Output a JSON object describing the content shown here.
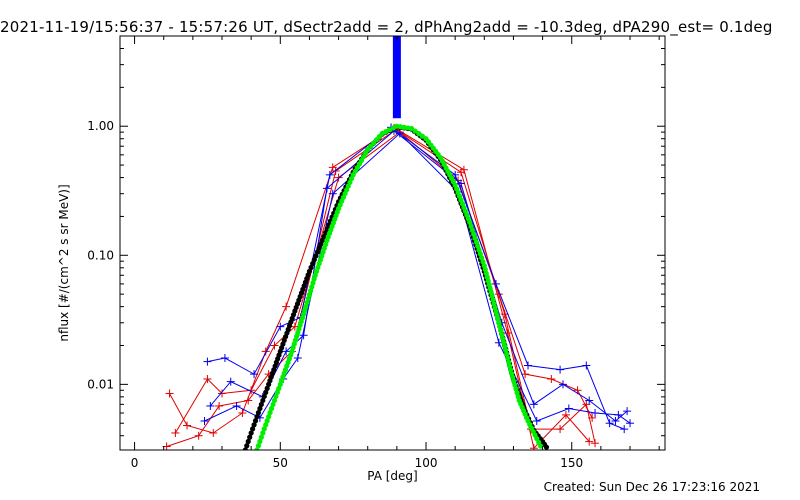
{
  "title": "2021-11-19/15:56:37 - 15:57:26 UT, dSectr2add = 2, dPhAng2add = -10.3deg, dPA290_est=  0.1deg",
  "created": "Created: Sun Dec 26 17:23:16 2021",
  "chart_data": {
    "type": "line",
    "xlabel": "PA [deg]",
    "ylabel": "nflux [#/(cm^2 s sr MeV)]",
    "xlim": [
      -5,
      182
    ],
    "ylim": [
      0.0031,
      5.0
    ],
    "yscale": "log",
    "x_ticks": [
      0,
      50,
      100,
      150
    ],
    "x_tick_labels": [
      "0",
      "50",
      "100",
      "150"
    ],
    "y_ticks": [
      0.01,
      0.1,
      1.0
    ],
    "y_tick_labels": [
      "0.01",
      "0.10",
      "1.00"
    ],
    "colors": {
      "red": "#e00000",
      "blue": "#0000ee",
      "green": "#00ee00",
      "black": "#000000"
    },
    "center_bar": {
      "x": 90,
      "y_from": 1.0,
      "y_to": 5.0,
      "color": "#0000ff"
    },
    "series": [
      {
        "color": "red",
        "x": [
          12,
          18,
          27,
          37,
          45,
          52,
          68,
          89,
          112,
          127,
          136,
          146,
          155,
          158
        ],
        "y": [
          0.0085,
          0.0048,
          0.0042,
          0.006,
          0.018,
          0.04,
          0.48,
          0.97,
          0.44,
          0.035,
          0.0045,
          0.0045,
          0.007,
          0.0035
        ]
      },
      {
        "color": "red",
        "x": [
          14,
          25,
          30,
          40,
          48,
          55,
          70,
          91,
          111,
          125,
          134,
          143,
          152,
          157
        ],
        "y": [
          0.0042,
          0.011,
          0.0085,
          0.009,
          0.02,
          0.028,
          0.4,
          0.9,
          0.38,
          0.05,
          0.012,
          0.011,
          0.009,
          0.0055
        ]
      },
      {
        "color": "red",
        "x": [
          11,
          22,
          29,
          39,
          46,
          54,
          69,
          90,
          113,
          128,
          137,
          148,
          156
        ],
        "y": [
          0.0033,
          0.004,
          0.0068,
          0.0075,
          0.012,
          0.018,
          0.45,
          0.95,
          0.46,
          0.025,
          0.0032,
          0.0058,
          0.0036
        ]
      },
      {
        "color": "blue",
        "x": [
          25,
          31,
          41,
          50,
          57,
          67,
          88,
          110,
          124,
          135,
          146,
          155,
          163,
          168
        ],
        "y": [
          0.015,
          0.016,
          0.012,
          0.028,
          0.033,
          0.42,
          0.98,
          0.42,
          0.06,
          0.014,
          0.013,
          0.014,
          0.005,
          0.0045
        ]
      },
      {
        "color": "blue",
        "x": [
          26,
          33,
          44,
          52,
          58,
          66,
          89,
          112,
          126,
          137,
          147,
          156,
          165,
          169
        ],
        "y": [
          0.0068,
          0.0105,
          0.008,
          0.018,
          0.024,
          0.33,
          0.92,
          0.36,
          0.03,
          0.007,
          0.01,
          0.0075,
          0.0052,
          0.0062
        ]
      },
      {
        "color": "blue",
        "x": [
          24,
          35,
          43,
          51,
          56,
          68,
          91,
          111,
          125,
          138,
          149,
          158,
          166,
          170
        ],
        "y": [
          0.0052,
          0.0068,
          0.0055,
          0.011,
          0.016,
          0.3,
          0.88,
          0.31,
          0.021,
          0.0052,
          0.0065,
          0.006,
          0.0058,
          0.005
        ]
      }
    ],
    "fits": [
      {
        "color": "black",
        "x": [
          38,
          40,
          43,
          46,
          50,
          55,
          60,
          65,
          70,
          75,
          80,
          85,
          90,
          95,
          100,
          105,
          110,
          115,
          120,
          125,
          130,
          134,
          137,
          140,
          142
        ],
        "y": [
          0.0031,
          0.0042,
          0.0065,
          0.01,
          0.018,
          0.037,
          0.075,
          0.14,
          0.26,
          0.44,
          0.66,
          0.87,
          0.99,
          0.95,
          0.78,
          0.55,
          0.33,
          0.17,
          0.075,
          0.03,
          0.011,
          0.0062,
          0.0044,
          0.0036,
          0.0031
        ]
      },
      {
        "color": "green",
        "x": [
          42,
          44,
          47,
          50,
          54,
          58,
          62,
          66,
          70,
          75,
          80,
          85,
          90,
          95,
          100,
          105,
          110,
          115,
          120,
          125,
          129,
          132,
          135,
          138,
          140
        ],
        "y": [
          0.0031,
          0.0042,
          0.0065,
          0.01,
          0.018,
          0.035,
          0.07,
          0.13,
          0.23,
          0.42,
          0.66,
          0.88,
          1.0,
          0.96,
          0.8,
          0.57,
          0.35,
          0.18,
          0.083,
          0.03,
          0.013,
          0.0075,
          0.0052,
          0.0038,
          0.0031
        ]
      }
    ]
  }
}
